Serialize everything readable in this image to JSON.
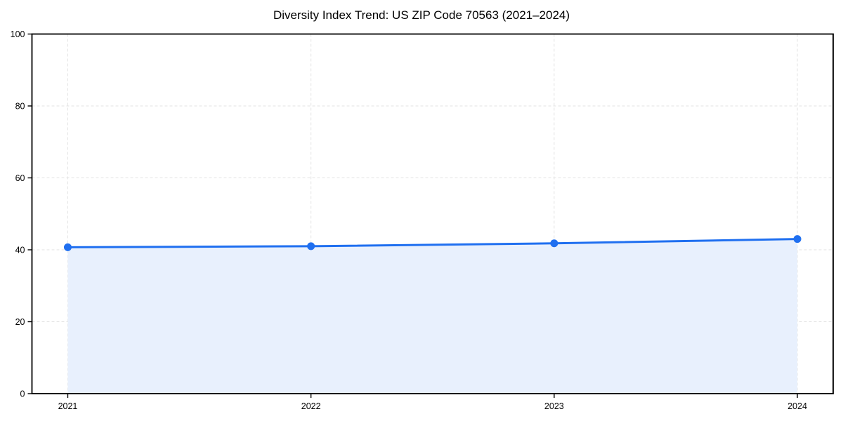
{
  "title": "Diversity Index Trend: US ZIP Code 70563 (2021–2024)",
  "chart_data": {
    "type": "area",
    "title": "Diversity Index Trend: US ZIP Code 70563 (2021–2024)",
    "categories": [
      "2021",
      "2022",
      "2023",
      "2024"
    ],
    "x": [
      2021,
      2022,
      2023,
      2024
    ],
    "series": [
      {
        "name": "Diversity Index",
        "values": [
          40.7,
          41.0,
          41.8,
          43.0
        ]
      }
    ],
    "xlabel": "",
    "ylabel": "",
    "ylim": [
      0,
      100
    ],
    "yticks": [
      0,
      20,
      40,
      60,
      80,
      100
    ],
    "grid": "dashed-both-axes",
    "legend": "none",
    "colors": {
      "line": "#1f6ff0",
      "marker": "#1f6ff0",
      "fill": "#e8f0fd",
      "grid": "#e3e3e3",
      "spine": "#000000",
      "tick": "#000000",
      "text": "#000000",
      "background": "#ffffff"
    }
  }
}
